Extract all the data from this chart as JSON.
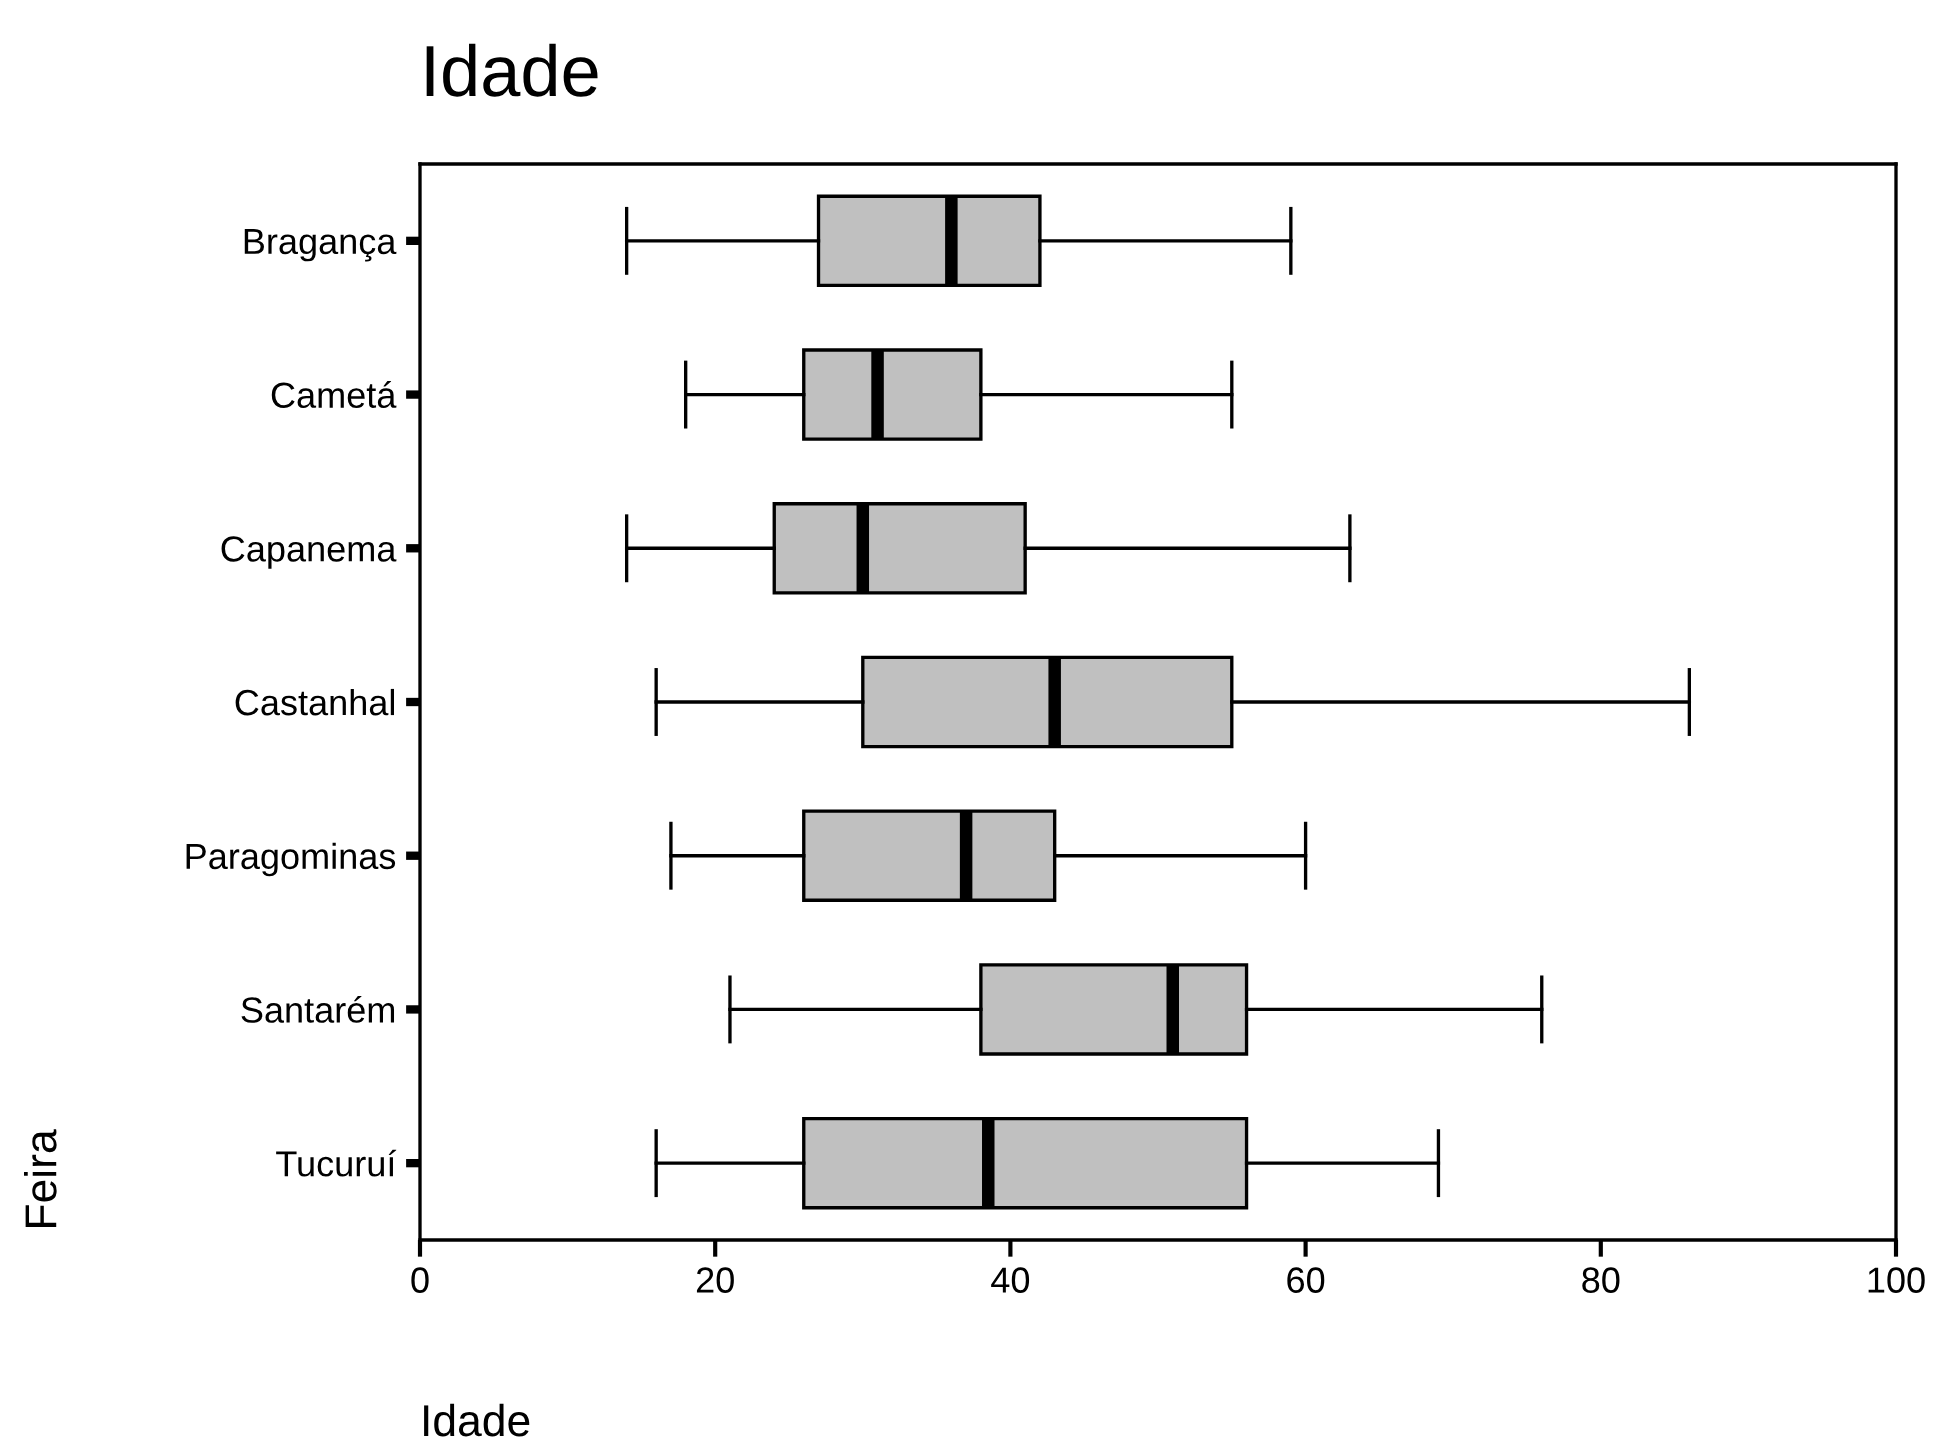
{
  "chart_data": {
    "type": "box",
    "title": "Idade",
    "xlabel": "Idade",
    "ylabel": "Feira",
    "orientation": "horizontal",
    "categories": [
      "Bragança",
      "Cametá",
      "Capanema",
      "Castanhal",
      "Paragominas",
      "Santarém",
      "Tucuruí"
    ],
    "color": "#c0c0c0",
    "boxes": [
      {
        "low": 14,
        "q1": 27,
        "median": 36,
        "q3": 42,
        "high": 59
      },
      {
        "low": 18,
        "q1": 26,
        "median": 31,
        "q3": 38,
        "high": 55
      },
      {
        "low": 14,
        "q1": 24,
        "median": 30,
        "q3": 41,
        "high": 63
      },
      {
        "low": 16,
        "q1": 30,
        "median": 43,
        "q3": 55,
        "high": 86
      },
      {
        "low": 17,
        "q1": 26,
        "median": 37,
        "q3": 43,
        "high": 60
      },
      {
        "low": 21,
        "q1": 38,
        "median": 51,
        "q3": 56,
        "high": 76
      },
      {
        "low": 16,
        "q1": 26,
        "median": 38.5,
        "q3": 56,
        "high": 69
      }
    ],
    "xlim": [
      0,
      100
    ],
    "xticks": [
      0,
      20,
      40,
      60,
      80,
      100
    ],
    "grid": false,
    "legend": false
  }
}
